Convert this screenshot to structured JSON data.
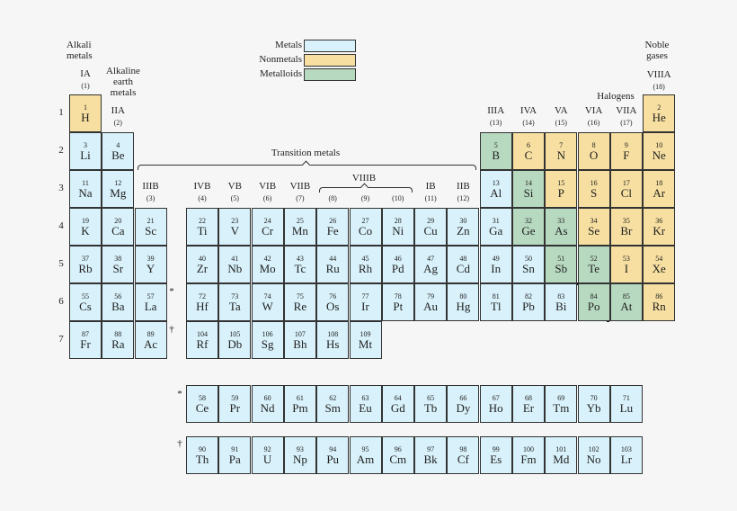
{
  "colors": {
    "metal": "#d8f1fa",
    "nonmetal": "#f6dfa0",
    "metalloid": "#b7d9c0"
  },
  "legend": [
    {
      "label": "Metals",
      "cat": "metal"
    },
    {
      "label": "Nonmetals",
      "cat": "nonmetal"
    },
    {
      "label": "Metalloids",
      "cat": "metalloid"
    }
  ],
  "labels": {
    "alkali": "Alkali metals",
    "alkaline": "Alkaline earth metals",
    "noble": "Noble gases",
    "halogens": "Halogens",
    "transition": "Transition metals",
    "viiib": "VIIIB",
    "lanth_mark": "*",
    "act_mark": "†"
  },
  "groups": [
    {
      "g": 1,
      "name": "IA",
      "num": "(1)"
    },
    {
      "g": 2,
      "name": "IIA",
      "num": "(2)"
    },
    {
      "g": 3,
      "name": "IIIB",
      "num": "(3)"
    },
    {
      "g": 4,
      "name": "IVB",
      "num": "(4)"
    },
    {
      "g": 5,
      "name": "VB",
      "num": "(5)"
    },
    {
      "g": 6,
      "name": "VIB",
      "num": "(6)"
    },
    {
      "g": 7,
      "name": "VIIB",
      "num": "(7)"
    },
    {
      "g": 8,
      "name": "",
      "num": "(8)"
    },
    {
      "g": 9,
      "name": "",
      "num": "(9)"
    },
    {
      "g": 10,
      "name": "",
      "num": "(10)"
    },
    {
      "g": 11,
      "name": "IB",
      "num": "(11)"
    },
    {
      "g": 12,
      "name": "IIB",
      "num": "(12)"
    },
    {
      "g": 13,
      "name": "IIIA",
      "num": "(13)"
    },
    {
      "g": 14,
      "name": "IVA",
      "num": "(14)"
    },
    {
      "g": 15,
      "name": "VA",
      "num": "(15)"
    },
    {
      "g": 16,
      "name": "VIA",
      "num": "(16)"
    },
    {
      "g": 17,
      "name": "VIIA",
      "num": "(17)"
    },
    {
      "g": 18,
      "name": "VIIIA",
      "num": "(18)"
    }
  ],
  "periods": [
    "1",
    "2",
    "3",
    "4",
    "5",
    "6",
    "7"
  ],
  "elements": [
    [
      1,
      "H",
      1,
      1,
      "n"
    ],
    [
      2,
      "He",
      1,
      18,
      "n"
    ],
    [
      3,
      "Li",
      2,
      1,
      "m"
    ],
    [
      4,
      "Be",
      2,
      2,
      "m"
    ],
    [
      5,
      "B",
      2,
      13,
      "d"
    ],
    [
      6,
      "C",
      2,
      14,
      "n"
    ],
    [
      7,
      "N",
      2,
      15,
      "n"
    ],
    [
      8,
      "O",
      2,
      16,
      "n"
    ],
    [
      9,
      "F",
      2,
      17,
      "n"
    ],
    [
      10,
      "Ne",
      2,
      18,
      "n"
    ],
    [
      11,
      "Na",
      3,
      1,
      "m"
    ],
    [
      12,
      "Mg",
      3,
      2,
      "m"
    ],
    [
      13,
      "Al",
      3,
      13,
      "m"
    ],
    [
      14,
      "Si",
      3,
      14,
      "d"
    ],
    [
      15,
      "P",
      3,
      15,
      "n"
    ],
    [
      16,
      "S",
      3,
      16,
      "n"
    ],
    [
      17,
      "Cl",
      3,
      17,
      "n"
    ],
    [
      18,
      "Ar",
      3,
      18,
      "n"
    ],
    [
      19,
      "K",
      4,
      1,
      "m"
    ],
    [
      20,
      "Ca",
      4,
      2,
      "m"
    ],
    [
      21,
      "Sc",
      4,
      3,
      "m"
    ],
    [
      22,
      "Ti",
      4,
      4,
      "m"
    ],
    [
      23,
      "V",
      4,
      5,
      "m"
    ],
    [
      24,
      "Cr",
      4,
      6,
      "m"
    ],
    [
      25,
      "Mn",
      4,
      7,
      "m"
    ],
    [
      26,
      "Fe",
      4,
      8,
      "m"
    ],
    [
      27,
      "Co",
      4,
      9,
      "m"
    ],
    [
      28,
      "Ni",
      4,
      10,
      "m"
    ],
    [
      29,
      "Cu",
      4,
      11,
      "m"
    ],
    [
      30,
      "Zn",
      4,
      12,
      "m"
    ],
    [
      31,
      "Ga",
      4,
      13,
      "m"
    ],
    [
      32,
      "Ge",
      4,
      14,
      "d"
    ],
    [
      33,
      "As",
      4,
      15,
      "d"
    ],
    [
      34,
      "Se",
      4,
      16,
      "n"
    ],
    [
      35,
      "Br",
      4,
      17,
      "n"
    ],
    [
      36,
      "Kr",
      4,
      18,
      "n"
    ],
    [
      37,
      "Rb",
      5,
      1,
      "m"
    ],
    [
      38,
      "Sr",
      5,
      2,
      "m"
    ],
    [
      39,
      "Y",
      5,
      3,
      "m"
    ],
    [
      40,
      "Zr",
      5,
      4,
      "m"
    ],
    [
      41,
      "Nb",
      5,
      5,
      "m"
    ],
    [
      42,
      "Mo",
      5,
      6,
      "m"
    ],
    [
      43,
      "Tc",
      5,
      7,
      "m"
    ],
    [
      44,
      "Ru",
      5,
      8,
      "m"
    ],
    [
      45,
      "Rh",
      5,
      9,
      "m"
    ],
    [
      46,
      "Pd",
      5,
      10,
      "m"
    ],
    [
      47,
      "Ag",
      5,
      11,
      "m"
    ],
    [
      48,
      "Cd",
      5,
      12,
      "m"
    ],
    [
      49,
      "In",
      5,
      13,
      "m"
    ],
    [
      50,
      "Sn",
      5,
      14,
      "m"
    ],
    [
      51,
      "Sb",
      5,
      15,
      "d"
    ],
    [
      52,
      "Te",
      5,
      16,
      "d"
    ],
    [
      53,
      "I",
      5,
      17,
      "n"
    ],
    [
      54,
      "Xe",
      5,
      18,
      "n"
    ],
    [
      55,
      "Cs",
      6,
      1,
      "m"
    ],
    [
      56,
      "Ba",
      6,
      2,
      "m"
    ],
    [
      57,
      "La",
      6,
      3,
      "m"
    ],
    [
      72,
      "Hf",
      6,
      4,
      "m"
    ],
    [
      73,
      "Ta",
      6,
      5,
      "m"
    ],
    [
      74,
      "W",
      6,
      6,
      "m"
    ],
    [
      75,
      "Re",
      6,
      7,
      "m"
    ],
    [
      76,
      "Os",
      6,
      8,
      "m"
    ],
    [
      77,
      "Ir",
      6,
      9,
      "m"
    ],
    [
      78,
      "Pt",
      6,
      10,
      "m"
    ],
    [
      79,
      "Au",
      6,
      11,
      "m"
    ],
    [
      80,
      "Hg",
      6,
      12,
      "m"
    ],
    [
      81,
      "Tl",
      6,
      13,
      "m"
    ],
    [
      82,
      "Pb",
      6,
      14,
      "m"
    ],
    [
      83,
      "Bi",
      6,
      15,
      "m"
    ],
    [
      84,
      "Po",
      6,
      16,
      "d"
    ],
    [
      85,
      "At",
      6,
      17,
      "d"
    ],
    [
      86,
      "Rn",
      6,
      18,
      "n"
    ],
    [
      87,
      "Fr",
      7,
      1,
      "m"
    ],
    [
      88,
      "Ra",
      7,
      2,
      "m"
    ],
    [
      89,
      "Ac",
      7,
      3,
      "m"
    ],
    [
      104,
      "Rf",
      7,
      4,
      "m"
    ],
    [
      105,
      "Db",
      7,
      5,
      "m"
    ],
    [
      106,
      "Sg",
      7,
      6,
      "m"
    ],
    [
      107,
      "Bh",
      7,
      7,
      "m"
    ],
    [
      108,
      "Hs",
      7,
      8,
      "m"
    ],
    [
      109,
      "Mt",
      7,
      9,
      "m"
    ],
    [
      58,
      "Ce",
      8,
      1,
      "m"
    ],
    [
      59,
      "Pr",
      8,
      2,
      "m"
    ],
    [
      60,
      "Nd",
      8,
      3,
      "m"
    ],
    [
      61,
      "Pm",
      8,
      4,
      "m"
    ],
    [
      62,
      "Sm",
      8,
      5,
      "m"
    ],
    [
      63,
      "Eu",
      8,
      6,
      "m"
    ],
    [
      64,
      "Gd",
      8,
      7,
      "m"
    ],
    [
      65,
      "Tb",
      8,
      8,
      "m"
    ],
    [
      66,
      "Dy",
      8,
      9,
      "m"
    ],
    [
      67,
      "Ho",
      8,
      10,
      "m"
    ],
    [
      68,
      "Er",
      8,
      11,
      "m"
    ],
    [
      69,
      "Tm",
      8,
      12,
      "m"
    ],
    [
      70,
      "Yb",
      8,
      13,
      "m"
    ],
    [
      71,
      "Lu",
      8,
      14,
      "m"
    ],
    [
      90,
      "Th",
      9,
      1,
      "m"
    ],
    [
      91,
      "Pa",
      9,
      2,
      "m"
    ],
    [
      92,
      "U",
      9,
      3,
      "m"
    ],
    [
      93,
      "Np",
      9,
      4,
      "m"
    ],
    [
      94,
      "Pu",
      9,
      5,
      "m"
    ],
    [
      95,
      "Am",
      9,
      6,
      "m"
    ],
    [
      96,
      "Cm",
      9,
      7,
      "m"
    ],
    [
      97,
      "Bk",
      9,
      8,
      "m"
    ],
    [
      98,
      "Cf",
      9,
      9,
      "m"
    ],
    [
      99,
      "Es",
      9,
      10,
      "m"
    ],
    [
      100,
      "Fm",
      9,
      11,
      "m"
    ],
    [
      101,
      "Md",
      9,
      12,
      "m"
    ],
    [
      102,
      "No",
      9,
      13,
      "m"
    ],
    [
      103,
      "Lr",
      9,
      14,
      "m"
    ]
  ]
}
